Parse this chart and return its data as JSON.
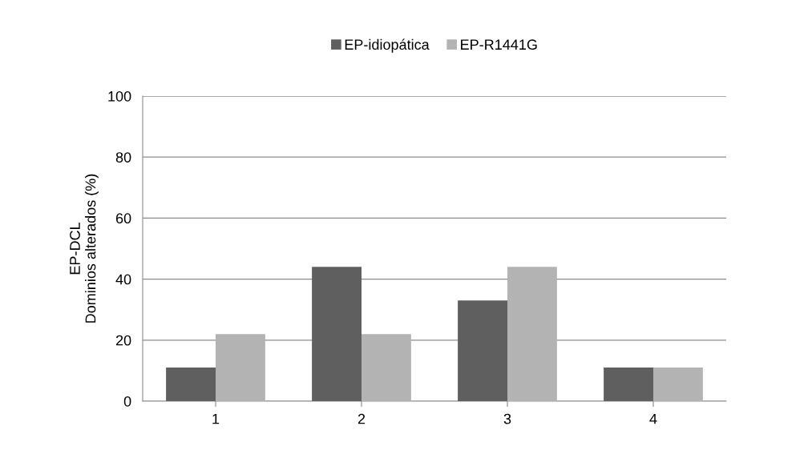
{
  "chart_data": {
    "type": "bar",
    "ylabel": "EP-DCL\nDominios alterados (%)",
    "categories": [
      "1",
      "2",
      "3",
      "4"
    ],
    "series": [
      {
        "name": "EP-idiopática",
        "color": "#5f5f5f",
        "values": [
          11,
          44,
          33,
          11
        ]
      },
      {
        "name": "EP-R1441G",
        "color": "#b3b3b3",
        "values": [
          22,
          22,
          44,
          11
        ]
      }
    ],
    "ylim": [
      0,
      100
    ],
    "yticks": [
      0,
      20,
      40,
      60,
      80,
      100
    ],
    "grid": "y",
    "legend": "top"
  }
}
